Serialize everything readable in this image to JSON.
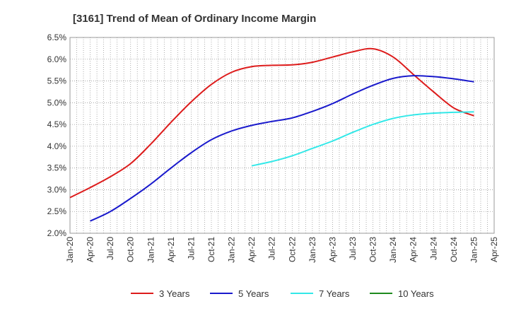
{
  "chart_data": {
    "type": "line",
    "title": "[3161]  Trend of Mean of Ordinary Income Margin",
    "xlabel": "",
    "ylabel": "",
    "x_ticks": [
      "Jan-20",
      "Apr-20",
      "Jul-20",
      "Oct-20",
      "Jan-21",
      "Apr-21",
      "Jul-21",
      "Oct-21",
      "Jan-22",
      "Apr-22",
      "Jul-22",
      "Oct-22",
      "Jan-23",
      "Apr-23",
      "Jul-23",
      "Oct-23",
      "Jan-24",
      "Apr-24",
      "Jul-24",
      "Oct-24",
      "Jan-25",
      "Apr-25"
    ],
    "y_ticks": [
      "2.0%",
      "2.5%",
      "3.0%",
      "3.5%",
      "4.0%",
      "4.5%",
      "5.0%",
      "5.5%",
      "6.0%",
      "6.5%"
    ],
    "ylim": [
      2.0,
      6.5
    ],
    "grid": true,
    "legend_position": "bottom",
    "series": [
      {
        "name": "3 Years",
        "color": "#dd1c1c",
        "x": [
          "Jan-20",
          "Apr-20",
          "Jul-20",
          "Oct-20",
          "Jan-21",
          "Apr-21",
          "Jul-21",
          "Oct-21",
          "Jan-22",
          "Apr-22",
          "Jul-22",
          "Oct-22",
          "Jan-23",
          "Apr-23",
          "Jul-23",
          "Oct-23",
          "Jan-24",
          "Apr-24",
          "Jul-24",
          "Oct-24",
          "Jan-25"
        ],
        "values": [
          2.82,
          3.05,
          3.3,
          3.6,
          4.05,
          4.55,
          5.02,
          5.42,
          5.7,
          5.83,
          5.86,
          5.87,
          5.93,
          6.05,
          6.17,
          6.24,
          6.05,
          5.65,
          5.25,
          4.88,
          4.7
        ]
      },
      {
        "name": "5 Years",
        "color": "#1a1acc",
        "x": [
          "Apr-20",
          "Jul-20",
          "Oct-20",
          "Jan-21",
          "Apr-21",
          "Jul-21",
          "Oct-21",
          "Jan-22",
          "Apr-22",
          "Jul-22",
          "Oct-22",
          "Jan-23",
          "Apr-23",
          "Jul-23",
          "Oct-23",
          "Jan-24",
          "Apr-24",
          "Jul-24",
          "Oct-24",
          "Jan-25"
        ],
        "values": [
          2.28,
          2.5,
          2.8,
          3.13,
          3.5,
          3.85,
          4.15,
          4.35,
          4.48,
          4.57,
          4.65,
          4.8,
          4.98,
          5.2,
          5.4,
          5.56,
          5.62,
          5.6,
          5.55,
          5.48
        ]
      },
      {
        "name": "7 Years",
        "color": "#33e8e8",
        "x": [
          "Apr-22",
          "Jul-22",
          "Oct-22",
          "Jan-23",
          "Apr-23",
          "Jul-23",
          "Oct-23",
          "Jan-24",
          "Apr-24",
          "Jul-24",
          "Oct-24",
          "Jan-25"
        ],
        "values": [
          3.55,
          3.65,
          3.78,
          3.95,
          4.12,
          4.32,
          4.5,
          4.64,
          4.72,
          4.76,
          4.78,
          4.79
        ]
      },
      {
        "name": "10 Years",
        "color": "#1f8a1f",
        "x": [],
        "values": []
      }
    ]
  }
}
